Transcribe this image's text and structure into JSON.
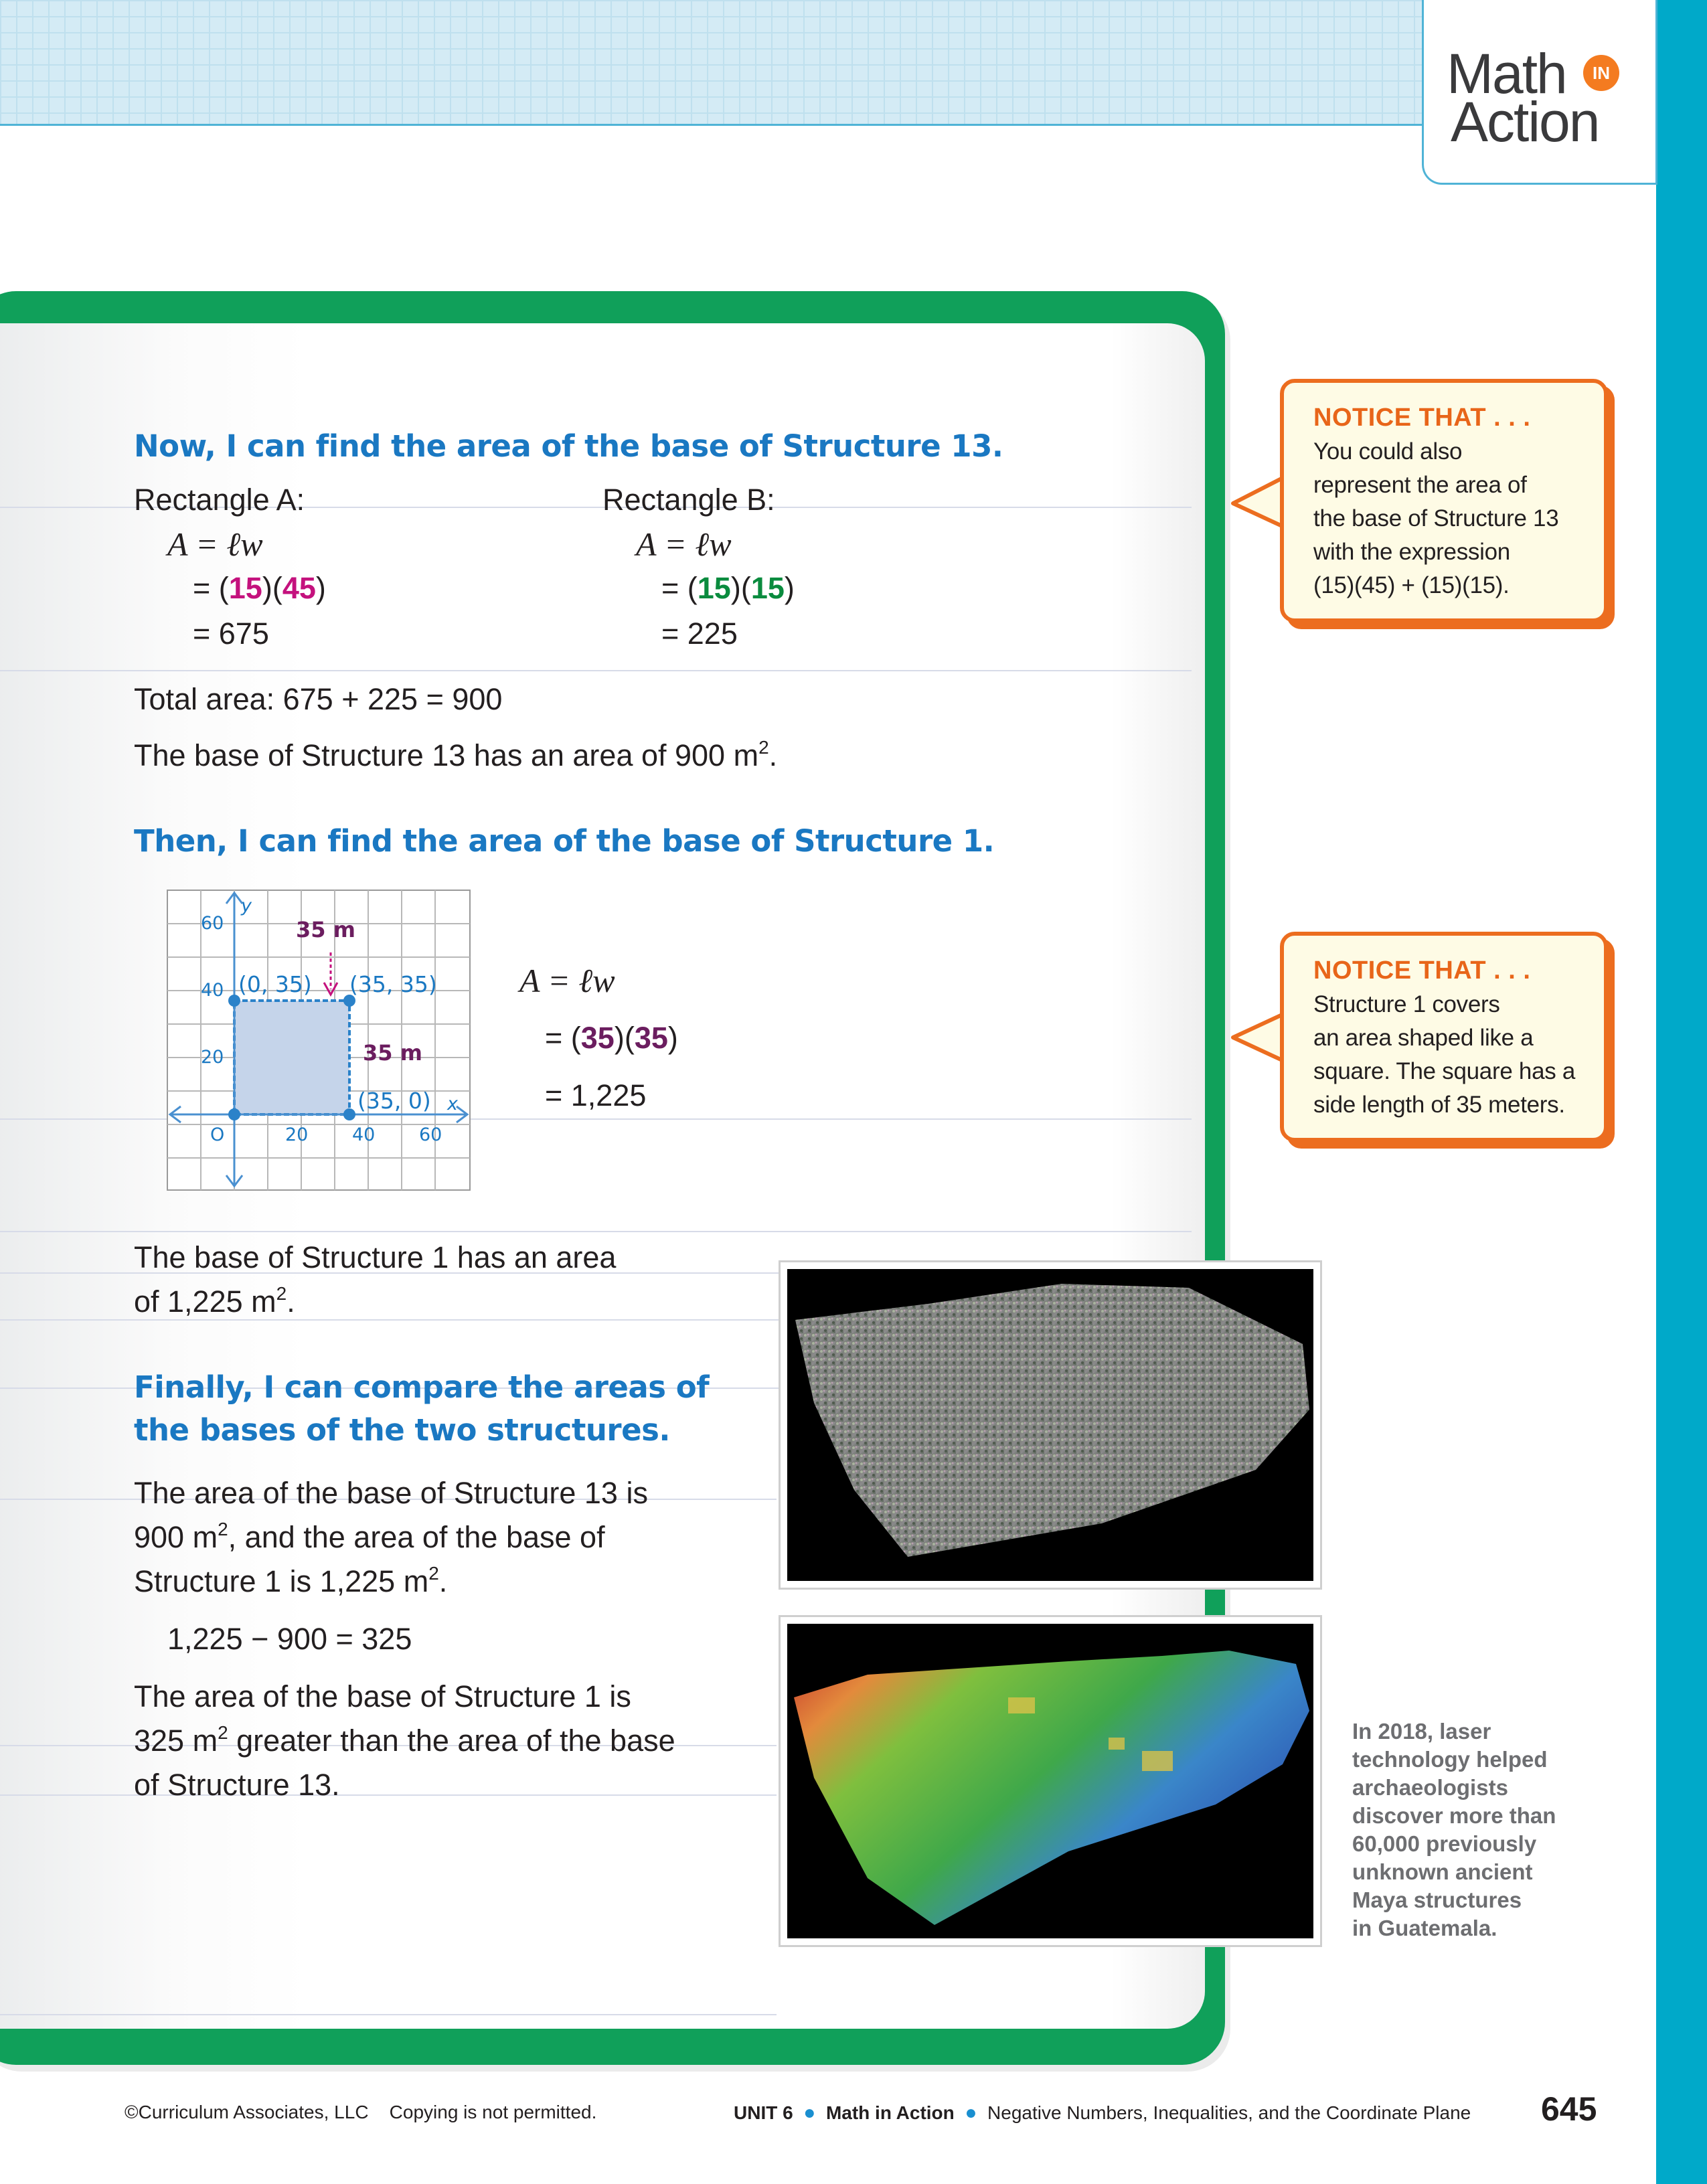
{
  "brand": {
    "logo_line1": "Math",
    "logo_in": "IN",
    "logo_line2": "Action"
  },
  "section13": {
    "heading": "Now, I can find the area of the base of Structure 13.",
    "rect_a": {
      "label": "Rectangle A:",
      "formula": "A = ℓw",
      "eq_prefix": "= (",
      "v1": "15",
      "mid": ")(",
      "v2": "45",
      "eq_suffix": ")",
      "result": "= 675"
    },
    "rect_b": {
      "label": "Rectangle B:",
      "formula": "A = ℓw",
      "eq_prefix": "= (",
      "v1": "15",
      "mid": ")(",
      "v2": "15",
      "eq_suffix": ")",
      "result": "= 225"
    },
    "total": "Total area: 675 + 225 = 900",
    "conclusion_pre": "The base of Structure 13 has an area of 900 m",
    "conclusion_sup": "2",
    "conclusion_post": "."
  },
  "section1": {
    "heading": "Then, I can find the area of the base of Structure 1.",
    "graph": {
      "y_axis_label": "y",
      "x_axis_label": "x",
      "y_ticks": [
        "60",
        "40",
        "20"
      ],
      "x_ticks": [
        "20",
        "40",
        "60"
      ],
      "origin": "O",
      "point_tl": "(0, 35)",
      "point_tr": "(35, 35)",
      "point_br": "(35, 0)",
      "top_side": "35 m",
      "right_side": "35 m"
    },
    "formula": "A = ℓw",
    "eq_prefix": "= (",
    "v1": "35",
    "mid": ")(",
    "v2": "35",
    "eq_suffix": ")",
    "result": "= 1,225",
    "conclusion_line1": "The base of Structure 1 has an area",
    "conclusion_line2_pre": "of 1,225 m",
    "conclusion_sup": "2",
    "conclusion_post": "."
  },
  "compare": {
    "heading_line1": "Finally, I can compare the areas of",
    "heading_line2": "the bases of the two structures.",
    "p1_line1": "The area of the base of Structure 13 is",
    "p1_line2_a": "900 m",
    "p1_line2_sup": "2",
    "p1_line2_b": ", and the area of the base of",
    "p1_line3_a": "Structure 1 is 1,225 m",
    "p1_line3_sup": "2",
    "p1_line3_b": ".",
    "calc": "1,225 − 900 = 325",
    "p2_line1": "The area of the base of Structure 1 is",
    "p2_line2_a": "325 m",
    "p2_line2_sup": "2",
    "p2_line2_b": " greater than the area of the base",
    "p2_line3": "of Structure 13."
  },
  "callouts": [
    {
      "title": "NOTICE THAT . . .",
      "lines": [
        "You could also",
        "represent the area of",
        "the base of Structure 13",
        "with the expression",
        "(15)(45) + (15)(15)."
      ]
    },
    {
      "title": "NOTICE THAT . . .",
      "lines": [
        "Structure 1 covers",
        "an area shaped like a",
        "square. The square has a",
        "side length of 35 meters."
      ]
    }
  ],
  "caption": [
    "In 2018, laser",
    "technology helped",
    "archaeologists",
    "discover more than",
    "60,000 previously",
    "unknown ancient",
    "Maya structures",
    "in Guatemala."
  ],
  "footer": {
    "copyright": "©Curriculum Associates, LLC",
    "notice": "Copying is not permitted.",
    "unit": "UNIT 6",
    "bullet": "●",
    "lesson": "Math in Action",
    "topic": "Negative Numbers, Inequalities, and the Coordinate Plane",
    "page": "645"
  },
  "colors": {
    "heading_blue": "#1a78c2",
    "frame_green": "#10a05a",
    "callout_orange": "#ec6d1f",
    "magenta": "#c4117d",
    "green": "#0a8b3e",
    "purple": "#6b1d5f",
    "side_bar": "#00a9c9"
  }
}
